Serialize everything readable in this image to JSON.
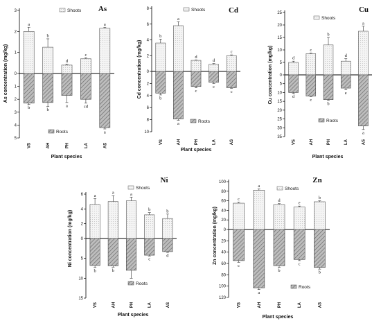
{
  "colors": {
    "shoots_fill": "#f2f2f2",
    "roots_fill": "#a9a9a9",
    "axis": "#000000"
  },
  "chart_data": [
    {
      "type": "bar",
      "title": "As",
      "categories": [
        "VS",
        "AH",
        "PH",
        "LA",
        "AS"
      ],
      "xlabel": "Plant species",
      "ylabel": "As concentration (mg/kg)",
      "ylim_up": [
        0,
        3
      ],
      "ylim_down": [
        0,
        5
      ],
      "ticks_up": [
        "1",
        "2",
        "3"
      ],
      "ticks_down": [
        "1",
        "2",
        "3",
        "4",
        "5"
      ],
      "series": [
        {
          "name": "Shoots",
          "values": [
            2.0,
            1.25,
            0.4,
            0.7,
            2.15
          ],
          "errors": [
            0.2,
            0.4,
            0.05,
            0.05,
            0.05
          ],
          "letters": [
            "a",
            "b",
            "d",
            "c",
            "a"
          ]
        },
        {
          "name": "Roots",
          "values": [
            2.3,
            2.25,
            1.7,
            2.0,
            4.2
          ],
          "errors": [
            0.1,
            0.3,
            0.55,
            0.3,
            0.1
          ],
          "letters": [
            "b",
            "b",
            "a",
            "cd",
            "a"
          ]
        }
      ]
    },
    {
      "type": "bar",
      "title": "Cd",
      "categories": [
        "VS",
        "AH",
        "PH",
        "LA",
        "AS"
      ],
      "xlabel": "Plant species",
      "ylabel": "Cd concentration (mg/kg)",
      "ylim_up": [
        0,
        8
      ],
      "ylim_down": [
        0,
        10
      ],
      "ticks_up": [
        "2",
        "4",
        "6",
        "8"
      ],
      "ticks_down": [
        "2",
        "4",
        "6",
        "8",
        "10"
      ],
      "series": [
        {
          "name": "Shoots",
          "values": [
            3.6,
            5.8,
            1.4,
            0.9,
            2.0
          ],
          "errors": [
            0.5,
            0.5,
            0.05,
            0.1,
            0.1
          ],
          "letters": [
            "b",
            "a",
            "d",
            "d",
            "c"
          ]
        },
        {
          "name": "Roots",
          "values": [
            3.6,
            7.9,
            2.5,
            1.8,
            2.7
          ],
          "errors": [
            0.3,
            0.2,
            0.2,
            0.2,
            0.1
          ],
          "letters": [
            "b",
            "a",
            "c",
            "c",
            "c"
          ]
        }
      ]
    },
    {
      "type": "bar",
      "title": "Cu",
      "categories": [
        "VS",
        "AH",
        "PH",
        "LA",
        "AS"
      ],
      "xlabel": "Plant species",
      "ylabel": "Cu concentration (mg/kg)",
      "ylim_up": [
        0,
        25
      ],
      "ylim_down": [
        0,
        35
      ],
      "ticks_up": [
        "5",
        "10",
        "15",
        "20",
        "25"
      ],
      "ticks_down": [
        "5",
        "10",
        "15",
        "20",
        "25",
        "30",
        "35"
      ],
      "series": [
        {
          "name": "Shoots",
          "values": [
            5.0,
            8.5,
            12.0,
            5.5,
            17.5
          ],
          "errors": [
            0.5,
            0.3,
            3.0,
            1.0,
            2.0
          ],
          "letters": [
            "d",
            "c",
            "b",
            "d",
            "a"
          ]
        },
        {
          "name": "Roots",
          "values": [
            10.0,
            12.0,
            14.0,
            7.5,
            29.0
          ],
          "errors": [
            0.5,
            0.3,
            0.5,
            1.0,
            2.0
          ],
          "letters": [
            "d",
            "c",
            "b",
            "e",
            "a"
          ]
        }
      ]
    },
    {
      "type": "bar",
      "title": "Ni",
      "categories": [
        "VS",
        "AH",
        "PH",
        "LA",
        "AS"
      ],
      "xlabel": "Plant species",
      "ylabel": "Ni concentration (mg/kg)",
      "ylim_up": [
        0,
        6
      ],
      "ylim_down": [
        0,
        15
      ],
      "ticks_up": [
        "2",
        "4",
        "6"
      ],
      "ticks_down": [
        "5",
        "10",
        "15"
      ],
      "series": [
        {
          "name": "Shoots",
          "values": [
            4.6,
            5.0,
            5.1,
            3.2,
            2.7
          ],
          "errors": [
            0.8,
            0.8,
            0.5,
            0.3,
            0.6
          ],
          "letters": [
            "a",
            "a",
            "a",
            "b",
            "b"
          ]
        },
        {
          "name": "Roots",
          "values": [
            6.8,
            6.9,
            8.0,
            4.2,
            3.3
          ],
          "errors": [
            0.5,
            0.3,
            2.0,
            0.2,
            0.2
          ],
          "letters": [
            "b",
            "b",
            "a",
            "c",
            "d"
          ]
        }
      ]
    },
    {
      "type": "bar",
      "title": "Zn",
      "categories": [
        "VS",
        "AH",
        "PH",
        "LA",
        "AS"
      ],
      "xlabel": "Plant species",
      "ylabel": "Zn concentration (mg/kg)",
      "ylim_up": [
        0,
        100
      ],
      "ylim_down": [
        0,
        120
      ],
      "ticks_up": [
        "20",
        "40",
        "60",
        "80",
        "100"
      ],
      "ticks_down": [
        "20",
        "40",
        "60",
        "80",
        "100",
        "120"
      ],
      "series": [
        {
          "name": "Shoots",
          "values": [
            55,
            82,
            52,
            47,
            58
          ],
          "errors": [
            2,
            3,
            2,
            2,
            2
          ],
          "letters": [
            "c",
            "a",
            "d",
            "e",
            "b"
          ]
        },
        {
          "name": "Roots",
          "values": [
            55,
            103,
            64,
            53,
            67
          ],
          "errors": [
            3,
            3,
            3,
            2,
            3
          ],
          "letters": [
            "c",
            "a",
            "b",
            "c",
            "b"
          ]
        }
      ]
    }
  ]
}
